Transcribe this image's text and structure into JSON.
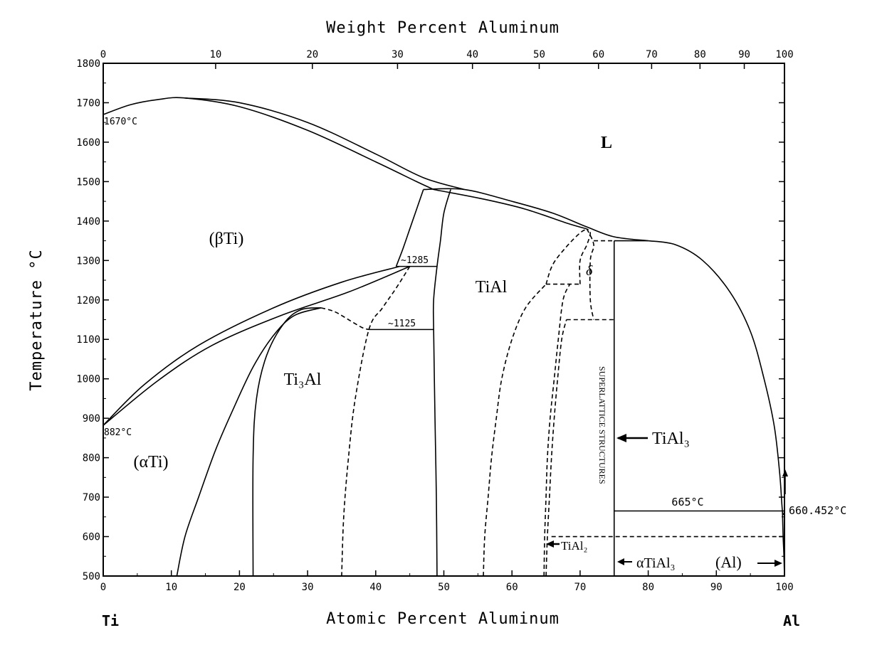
{
  "chart_data": {
    "type": "line",
    "title": "",
    "xlabel": "Atomic Percent Aluminum",
    "x2label": "Weight Percent Aluminum",
    "ylabel": "Temperature °C",
    "xlim": [
      0,
      100
    ],
    "ylim": [
      500,
      1800
    ],
    "grid": false,
    "x_ticks": [
      0,
      10,
      20,
      30,
      40,
      50,
      60,
      70,
      80,
      90,
      100
    ],
    "x_tick_labels": [
      "0",
      "10",
      "20",
      "30",
      "40",
      "50",
      "60",
      "70",
      "80",
      "90",
      "100"
    ],
    "y_ticks": [
      500,
      600,
      700,
      800,
      900,
      1000,
      1100,
      1200,
      1300,
      1400,
      1500,
      1600,
      1700,
      1800
    ],
    "y_tick_labels": [
      "500",
      "600",
      "700",
      "800",
      "900",
      "1000",
      "1100",
      "1200",
      "1300",
      "1400",
      "1500",
      "1600",
      "1700",
      "1800"
    ],
    "top_ticks": [
      {
        "label": "0",
        "at": 0
      },
      {
        "label": "10",
        "at": 16.5
      },
      {
        "label": "20",
        "at": 30.7
      },
      {
        "label": "30",
        "at": 43.2
      },
      {
        "label": "40",
        "at": 54.2
      },
      {
        "label": "50",
        "at": 64.0
      },
      {
        "label": "60",
        "at": 72.7
      },
      {
        "label": "70",
        "at": 80.5
      },
      {
        "label": "80",
        "at": 87.6
      },
      {
        "label": "90",
        "at": 94.1
      },
      {
        "label": "100",
        "at": 100
      }
    ],
    "end_labels": {
      "left": "Ti",
      "right": "Al"
    },
    "series": [
      {
        "style": "solid",
        "points": [
          [
            0,
            1670
          ],
          [
            4,
            1695
          ],
          [
            8,
            1708
          ],
          [
            12,
            1712
          ],
          [
            20,
            1690
          ],
          [
            30,
            1630
          ],
          [
            40,
            1550
          ],
          [
            46,
            1500
          ],
          [
            48.5,
            1480
          ]
        ]
      },
      {
        "style": "solid",
        "points": [
          [
            12,
            1712
          ],
          [
            20,
            1700
          ],
          [
            30,
            1650
          ],
          [
            40,
            1570
          ],
          [
            47,
            1510
          ],
          [
            53,
            1480
          ]
        ]
      },
      {
        "style": "solid",
        "points": [
          [
            47,
            1480
          ],
          [
            53,
            1480
          ],
          [
            60,
            1450
          ],
          [
            66,
            1420
          ],
          [
            71,
            1385
          ],
          [
            75,
            1360
          ],
          [
            80,
            1350
          ]
        ]
      },
      {
        "style": "solid",
        "points": [
          [
            48.5,
            1480
          ],
          [
            56,
            1455
          ],
          [
            62,
            1430
          ],
          [
            68,
            1395
          ],
          [
            71,
            1380
          ]
        ]
      },
      {
        "style": "solid",
        "points": [
          [
            80,
            1350
          ],
          [
            84,
            1340
          ],
          [
            88,
            1300
          ],
          [
            92,
            1220
          ],
          [
            95,
            1120
          ],
          [
            97,
            1000
          ],
          [
            98.5,
            880
          ],
          [
            99.3,
            760
          ],
          [
            99.7,
            665
          ],
          [
            100,
            660
          ]
        ]
      },
      {
        "style": "solid",
        "points": [
          [
            0,
            882
          ],
          [
            6,
            985
          ],
          [
            14,
            1085
          ],
          [
            25,
            1180
          ],
          [
            35,
            1245
          ],
          [
            43.5,
            1285
          ]
        ]
      },
      {
        "style": "solid",
        "points": [
          [
            0,
            882
          ],
          [
            8,
            995
          ],
          [
            16,
            1085
          ],
          [
            26,
            1160
          ],
          [
            36,
            1220
          ],
          [
            45,
            1285
          ]
        ]
      },
      {
        "style": "solid",
        "points": [
          [
            47,
            1480
          ],
          [
            46,
            1430
          ],
          [
            45,
            1380
          ],
          [
            44,
            1330
          ],
          [
            43,
            1285
          ]
        ]
      },
      {
        "style": "solid",
        "points": [
          [
            51,
            1480
          ],
          [
            50,
            1420
          ],
          [
            49.5,
            1350
          ],
          [
            49,
            1285
          ],
          [
            48.5,
            1200
          ],
          [
            48.5,
            1125
          ],
          [
            48.7,
            900
          ],
          [
            48.9,
            700
          ],
          [
            49,
            500
          ]
        ]
      },
      {
        "style": "solid",
        "points": [
          [
            43,
            1285
          ],
          [
            49,
            1285
          ]
        ]
      },
      {
        "style": "solid",
        "points": [
          [
            39,
            1125
          ],
          [
            48.5,
            1125
          ]
        ]
      },
      {
        "style": "solid",
        "points": [
          [
            10.8,
            500
          ],
          [
            12,
            600
          ],
          [
            14,
            700
          ],
          [
            16.5,
            820
          ],
          [
            19,
            920
          ],
          [
            22,
            1030
          ],
          [
            25,
            1110
          ],
          [
            28,
            1160
          ],
          [
            32,
            1180
          ]
        ]
      },
      {
        "style": "solid",
        "points": [
          [
            22,
            500
          ],
          [
            22,
            800
          ],
          [
            22.5,
            950
          ],
          [
            24,
            1060
          ],
          [
            26.5,
            1140
          ],
          [
            29,
            1175
          ],
          [
            32,
            1180
          ]
        ]
      },
      {
        "style": "solid",
        "points": [
          [
            75,
            500
          ],
          [
            75,
            1350
          ]
        ]
      },
      {
        "style": "solid",
        "points": [
          [
            75,
            665
          ],
          [
            100,
            665
          ]
        ]
      },
      {
        "style": "solid",
        "points": [
          [
            75,
            1350
          ],
          [
            80,
            1350
          ]
        ]
      },
      {
        "style": "solid",
        "points": [
          [
            99.7,
            665
          ],
          [
            99.8,
            600
          ],
          [
            99.9,
            560
          ],
          [
            100,
            500
          ]
        ]
      },
      {
        "style": "dashed",
        "points": [
          [
            32,
            1180
          ],
          [
            34,
            1170
          ],
          [
            36,
            1150
          ],
          [
            38,
            1130
          ],
          [
            39,
            1125
          ]
        ]
      },
      {
        "style": "dashed",
        "points": [
          [
            45,
            1285
          ],
          [
            43,
            1230
          ],
          [
            41,
            1180
          ],
          [
            39,
            1125
          ],
          [
            37,
            950
          ],
          [
            36,
            800
          ],
          [
            35.3,
            650
          ],
          [
            35,
            500
          ]
        ]
      },
      {
        "style": "dashed",
        "points": [
          [
            55.8,
            500
          ],
          [
            56,
            600
          ],
          [
            56.5,
            700
          ],
          [
            57,
            800
          ],
          [
            57.7,
            900
          ],
          [
            58.5,
            1000
          ],
          [
            60,
            1100
          ],
          [
            62,
            1180
          ],
          [
            65,
            1240
          ]
        ]
      },
      {
        "style": "dashed",
        "points": [
          [
            64.7,
            500
          ],
          [
            64.8,
            600
          ],
          [
            65,
            700
          ],
          [
            65.2,
            800
          ],
          [
            65.6,
            900
          ],
          [
            66.2,
            1000
          ],
          [
            66.8,
            1100
          ],
          [
            67.5,
            1200
          ],
          [
            68.5,
            1240
          ]
        ]
      },
      {
        "style": "dashed",
        "points": [
          [
            65,
            500
          ],
          [
            65.2,
            600
          ],
          [
            65.5,
            700
          ],
          [
            65.8,
            800
          ],
          [
            66.2,
            900
          ],
          [
            66.7,
            1000
          ],
          [
            67.3,
            1100
          ],
          [
            68,
            1150
          ]
        ]
      },
      {
        "style": "dashed",
        "points": [
          [
            65,
            1240
          ],
          [
            66,
            1290
          ],
          [
            68,
            1335
          ],
          [
            70,
            1370
          ],
          [
            71,
            1380
          ]
        ]
      },
      {
        "style": "dashed",
        "points": [
          [
            65,
            1240
          ],
          [
            70,
            1240
          ]
        ]
      },
      {
        "style": "dashed",
        "points": [
          [
            70,
            1240
          ],
          [
            70,
            1300
          ],
          [
            71,
            1340
          ],
          [
            71.5,
            1370
          ],
          [
            71,
            1380
          ]
        ]
      },
      {
        "style": "dashed",
        "points": [
          [
            68,
            1150
          ],
          [
            75,
            1150
          ]
        ]
      },
      {
        "style": "dashed",
        "points": [
          [
            71,
            1380
          ],
          [
            72,
            1340
          ],
          [
            71.5,
            1300
          ],
          [
            71.5,
            1200
          ],
          [
            72,
            1150
          ]
        ]
      },
      {
        "style": "dashed",
        "points": [
          [
            72,
            1350
          ],
          [
            75,
            1350
          ]
        ]
      },
      {
        "style": "dashed",
        "points": [
          [
            65.8,
            600
          ],
          [
            100,
            600
          ]
        ]
      }
    ],
    "annotations": {
      "melt_ti": "1670°C",
      "trans_ti": "882°C",
      "liquid": "L",
      "beta_ti": "(βTi)",
      "alpha_ti": "(αTi)",
      "ti3al": "Ti₃Al",
      "tial": "TiAl",
      "t1285": "~1285",
      "t1125": "~1125",
      "delta": "δ",
      "superlattice": "SUPERLATTICE STRUCTURES",
      "tial3": "TiAl₃",
      "t665": "665°C",
      "melt_al": "660.452°C",
      "tial2": "TiAl₂",
      "alpha_tial3": "αTiAl₃",
      "al_phase": "(Al)"
    }
  }
}
